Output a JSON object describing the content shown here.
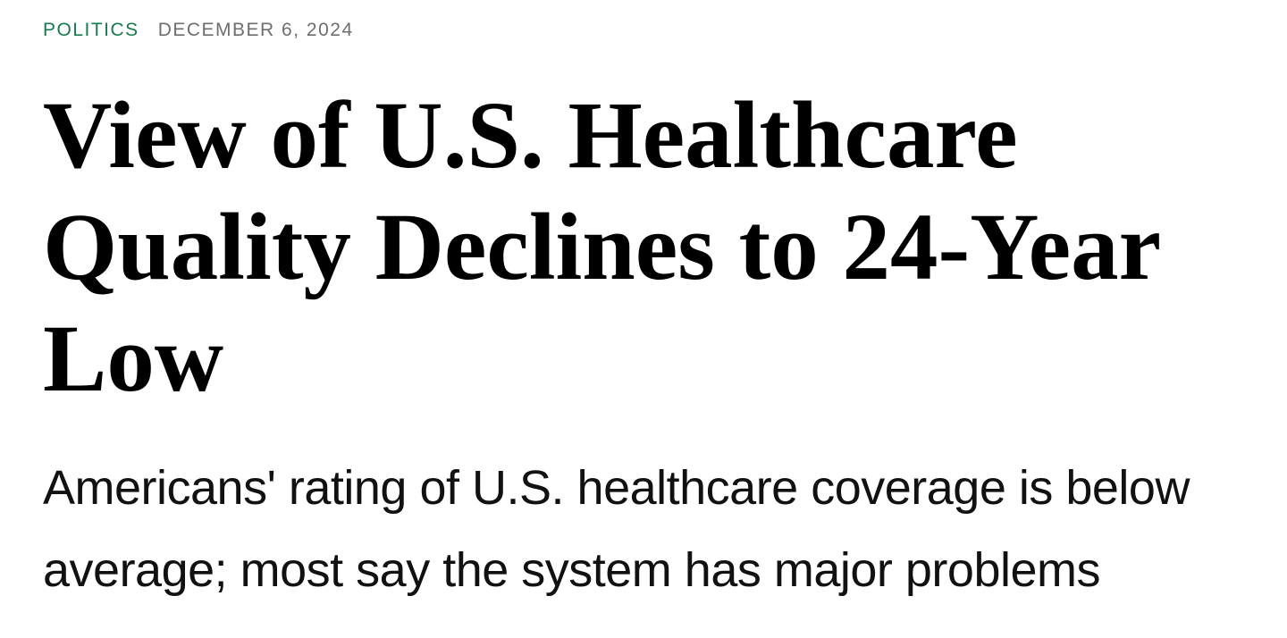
{
  "article": {
    "eyebrow": {
      "category": "POLITICS",
      "date": "DECEMBER 6, 2024"
    },
    "headline": "View of U.S. Healthcare Quality Declines to 24-Year Low",
    "headline_lines": [
      "View of U.S. Healthcare",
      "Quality Declines to 24-Year",
      "Low"
    ],
    "deck": "Americans' rating of U.S. healthcare coverage is below average; most say the system has major problems",
    "deck_lines": [
      "Americans' rating of U.S. healthcare coverage is below",
      "average; most say the system has major problems"
    ]
  },
  "colors": {
    "category_green": "#187a4d",
    "date_gray": "#6e6e6e",
    "headline_black": "#000000",
    "deck_black": "#111111",
    "background": "#ffffff"
  }
}
